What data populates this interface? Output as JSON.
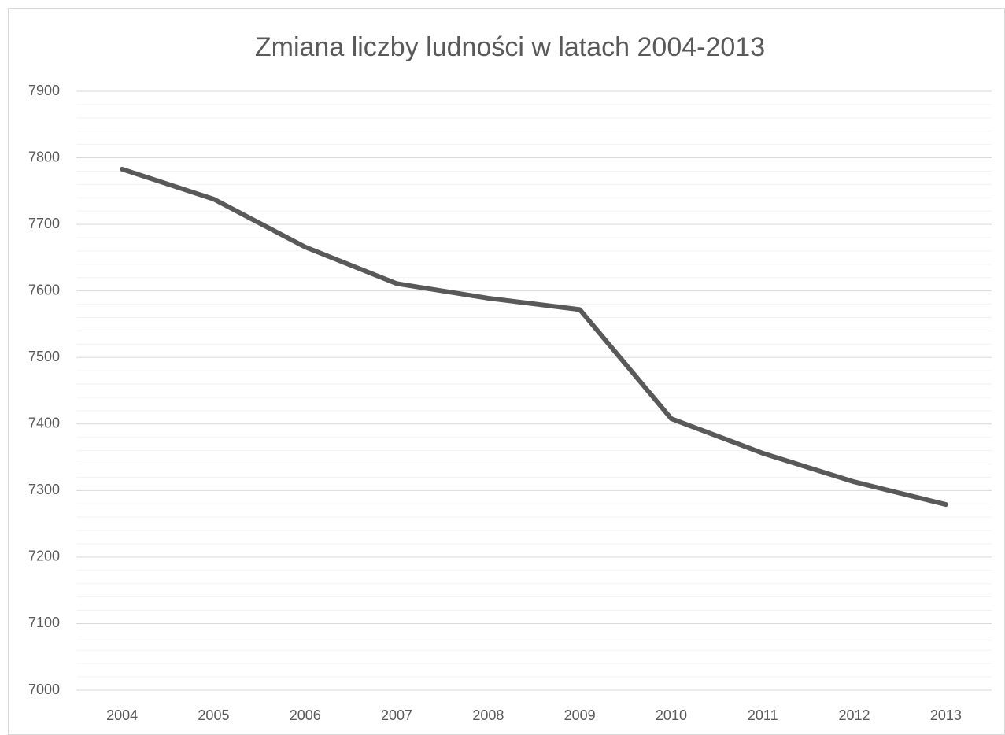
{
  "chart_data": {
    "type": "line",
    "title": "Zmiana liczby ludności w latach 2004-2013",
    "categories": [
      "2004",
      "2005",
      "2006",
      "2007",
      "2008",
      "2009",
      "2010",
      "2011",
      "2012",
      "2013"
    ],
    "values": [
      7783,
      7738,
      7666,
      7611,
      7589,
      7572,
      7408,
      7356,
      7313,
      7279
    ],
    "color": "#595959",
    "ylim": [
      7000,
      7900
    ],
    "yticks": [
      7000,
      7100,
      7200,
      7300,
      7400,
      7500,
      7600,
      7700,
      7800,
      7900
    ],
    "minor_yticks": [
      7020,
      7040,
      7060,
      7080,
      7120,
      7140,
      7160,
      7180,
      7220,
      7240,
      7260,
      7280,
      7320,
      7340,
      7360,
      7380,
      7420,
      7440,
      7460,
      7480,
      7520,
      7540,
      7560,
      7580,
      7620,
      7640,
      7660,
      7680,
      7720,
      7740,
      7760,
      7780,
      7820,
      7840,
      7860,
      7880
    ],
    "grid": true,
    "minor_grid": true
  }
}
